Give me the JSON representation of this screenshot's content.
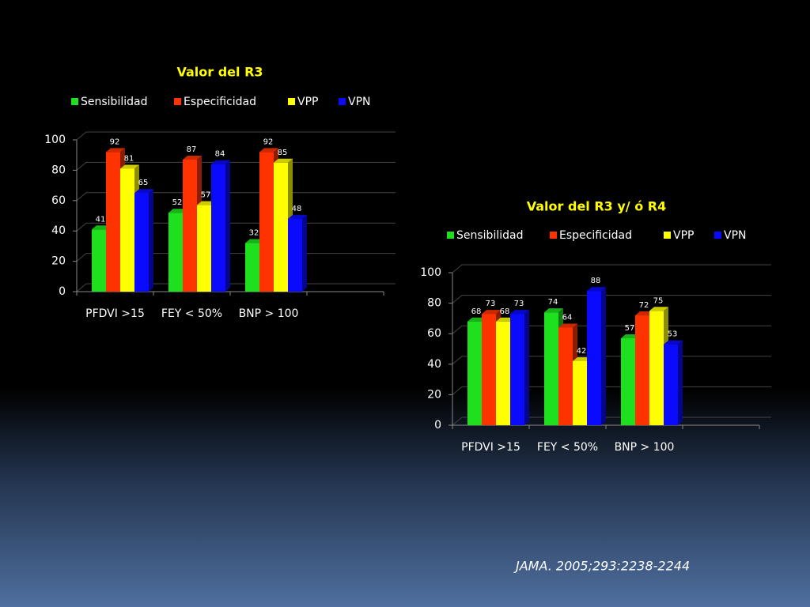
{
  "chart_data": [
    {
      "type": "bar",
      "title": "Valor del R3",
      "categories": [
        "PFDVI >15",
        "FEY < 50%",
        "BNP > 100"
      ],
      "series": [
        {
          "name": "Sensibilidad",
          "color": "#1ee01e",
          "values": [
            41,
            52,
            32
          ]
        },
        {
          "name": "Especificidad",
          "color": "#ff3300",
          "values": [
            92,
            87,
            92
          ]
        },
        {
          "name": "VPP",
          "color": "#ffff00",
          "values": [
            81,
            57,
            85
          ]
        },
        {
          "name": "VPN",
          "color": "#0a0aff",
          "values": [
            65,
            84,
            48
          ]
        }
      ],
      "ylim": [
        0,
        100
      ],
      "yticks": [
        0,
        20,
        40,
        60,
        80,
        100
      ],
      "grid": true,
      "legend": "top"
    },
    {
      "type": "bar",
      "title": "Valor del R3 y/ ó R4",
      "categories": [
        "PFDVI >15",
        "FEY < 50%",
        "BNP > 100"
      ],
      "series": [
        {
          "name": "Sensibilidad",
          "color": "#1ee01e",
          "values": [
            68,
            74,
            57
          ]
        },
        {
          "name": "Especificidad",
          "color": "#ff3300",
          "values": [
            73,
            64,
            72
          ]
        },
        {
          "name": "VPP",
          "color": "#ffff00",
          "values": [
            68,
            42,
            75
          ]
        },
        {
          "name": "VPN",
          "color": "#0a0aff",
          "values": [
            73,
            88,
            53
          ]
        }
      ],
      "ylim": [
        0,
        100
      ],
      "yticks": [
        0,
        20,
        40,
        60,
        80,
        100
      ],
      "grid": true,
      "legend": "top"
    }
  ],
  "footer": "JAMA. 2005;293:2238-2244"
}
